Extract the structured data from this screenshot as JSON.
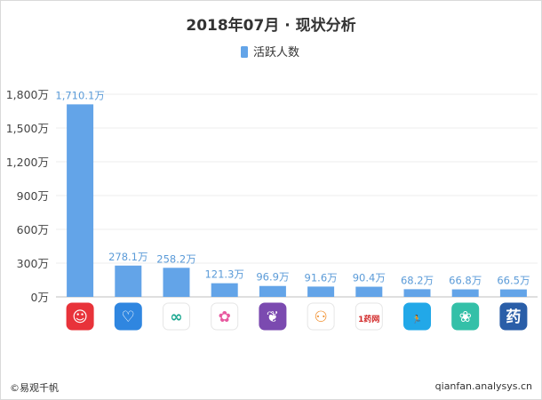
{
  "chart_data": {
    "type": "bar",
    "title": "2018年07月 · 现状分析",
    "legend": {
      "position": "top-center"
    },
    "series": [
      {
        "name": "活跃人数",
        "color": "#63a4e8",
        "values": [
          1710.1,
          278.1,
          258.2,
          121.3,
          96.9,
          91.6,
          90.4,
          68.2,
          66.8,
          66.5
        ],
        "labels": [
          "1,710.1万",
          "278.1万",
          "258.2万",
          "121.3万",
          "96.9万",
          "91.6万",
          "90.4万",
          "68.2万",
          "66.8万",
          "66.5万"
        ]
      }
    ],
    "ylim": [
      0,
      1800
    ],
    "yticks": [
      0,
      300,
      600,
      900,
      1200,
      1500,
      1800
    ],
    "ytick_labels": [
      "0万",
      "300万",
      "600万",
      "900万",
      "1,200万",
      "1,500万",
      "1,800万"
    ],
    "grid": true,
    "categories": [
      "app-1",
      "app-2",
      "app-3",
      "app-4",
      "app-5",
      "app-6",
      "app-7",
      "app-8",
      "app-9",
      "app-10"
    ],
    "category_icons": [
      {
        "name": "app-icon-red-chat",
        "bg": "#e8333a",
        "glyph": "☺",
        "fg": "#ffffff"
      },
      {
        "name": "app-icon-blue-heart",
        "bg": "#2f86e0",
        "glyph": "♡",
        "fg": "#ffffff"
      },
      {
        "name": "app-icon-infinity",
        "bg": "#ffffff",
        "glyph": "∞",
        "fg": "#1aa78f"
      },
      {
        "name": "app-icon-flower",
        "bg": "#ffffff",
        "glyph": "✿",
        "fg": "#e85aa0"
      },
      {
        "name": "app-icon-purple-leaf",
        "bg": "#7b4ab0",
        "glyph": "❦",
        "fg": "#ffffff"
      },
      {
        "name": "app-icon-people",
        "bg": "#ffffff",
        "glyph": "⚇",
        "fg": "#f08a24"
      },
      {
        "name": "app-icon-1haowang",
        "bg": "#ffffff",
        "glyph": "1药网",
        "fg": "#d22b2b"
      },
      {
        "name": "app-icon-runner",
        "bg": "#22a8e8",
        "glyph": "🏃",
        "fg": "#ffffff"
      },
      {
        "name": "app-icon-green-ribbon",
        "bg": "#34c0a8",
        "glyph": "❀",
        "fg": "#ffffff"
      },
      {
        "name": "app-icon-medicine",
        "bg": "#2a5ea8",
        "glyph": "药",
        "fg": "#ffffff"
      }
    ]
  },
  "footer": {
    "left": "©易观千帆",
    "right": "qianfan.analysys.cn"
  }
}
